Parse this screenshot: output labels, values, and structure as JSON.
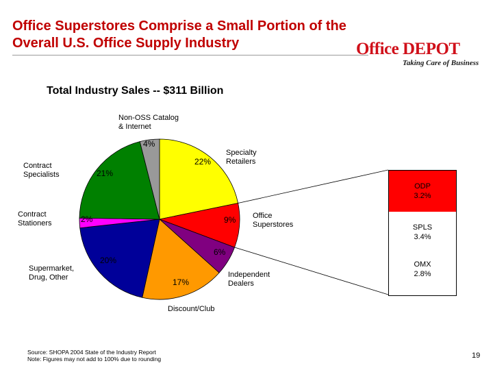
{
  "slide": {
    "title_line1": "Office Superstores Comprise a Small Portion of the",
    "title_line2": "Overall U.S. Office Supply Industry",
    "logo_word": "Office DEPOT",
    "logo_tagline": "Taking Care of Business",
    "page_number": "19"
  },
  "chart_data": {
    "type": "pie",
    "title": "Total Industry Sales -- $311 Billion",
    "slices": [
      {
        "label": "Specialty Retailers",
        "value": 22,
        "value_label": "22%",
        "color": "#ffff00"
      },
      {
        "label": "Office Superstores",
        "value": 9,
        "value_label": "9%",
        "color": "#ff0000"
      },
      {
        "label": "Independent Dealers",
        "value": 6,
        "value_label": "6%",
        "color": "#800080"
      },
      {
        "label": "Discount/Club",
        "value": 17,
        "value_label": "17%",
        "color": "#ff9900"
      },
      {
        "label": "Supermarket, Drug, Other",
        "value": 20,
        "value_label": "20%",
        "color": "#000099"
      },
      {
        "label": "Contract Stationers",
        "value": 2,
        "value_label": "2%",
        "color": "#ff00ff"
      },
      {
        "label": "Contract Specialists",
        "value": 21,
        "value_label": "21%",
        "color": "#008000"
      },
      {
        "label": "Non-OSS Catalog & Internet",
        "value": 4,
        "value_label": "4%",
        "color": "#999999"
      }
    ],
    "breakdown": {
      "of": "Office Superstores",
      "items": [
        {
          "line1": "ODP",
          "line2": "3.2%",
          "value": 3.2,
          "color": "#ff0000"
        },
        {
          "line1": "SPLS",
          "line2": "3.4%",
          "value": 3.4,
          "color": "#ffffff"
        },
        {
          "line1": "OMX",
          "line2": "2.8%",
          "value": 2.8,
          "color": "#ffffff"
        }
      ]
    },
    "text_labels": {
      "specialty_l1": "Specialty",
      "specialty_l2": "Retailers",
      "superstores_l1": "Office",
      "superstores_l2": "Superstores",
      "independent_l1": "Independent",
      "independent_l2": "Dealers",
      "discount": "Discount/Club",
      "supermarket_l1": "Supermarket,",
      "supermarket_l2": "Drug, Other",
      "stationers_l1": "Contract",
      "stationers_l2": "Stationers",
      "specialists_l1": "Contract",
      "specialists_l2": "Specialists",
      "catalog_l1": "Non-OSS Catalog",
      "catalog_l2": "& Internet"
    }
  },
  "footnotes": {
    "source": "Source: SHOPA 2004 State of the Industry Report",
    "note": "Note:  Figures may not add to 100% due to rounding"
  }
}
